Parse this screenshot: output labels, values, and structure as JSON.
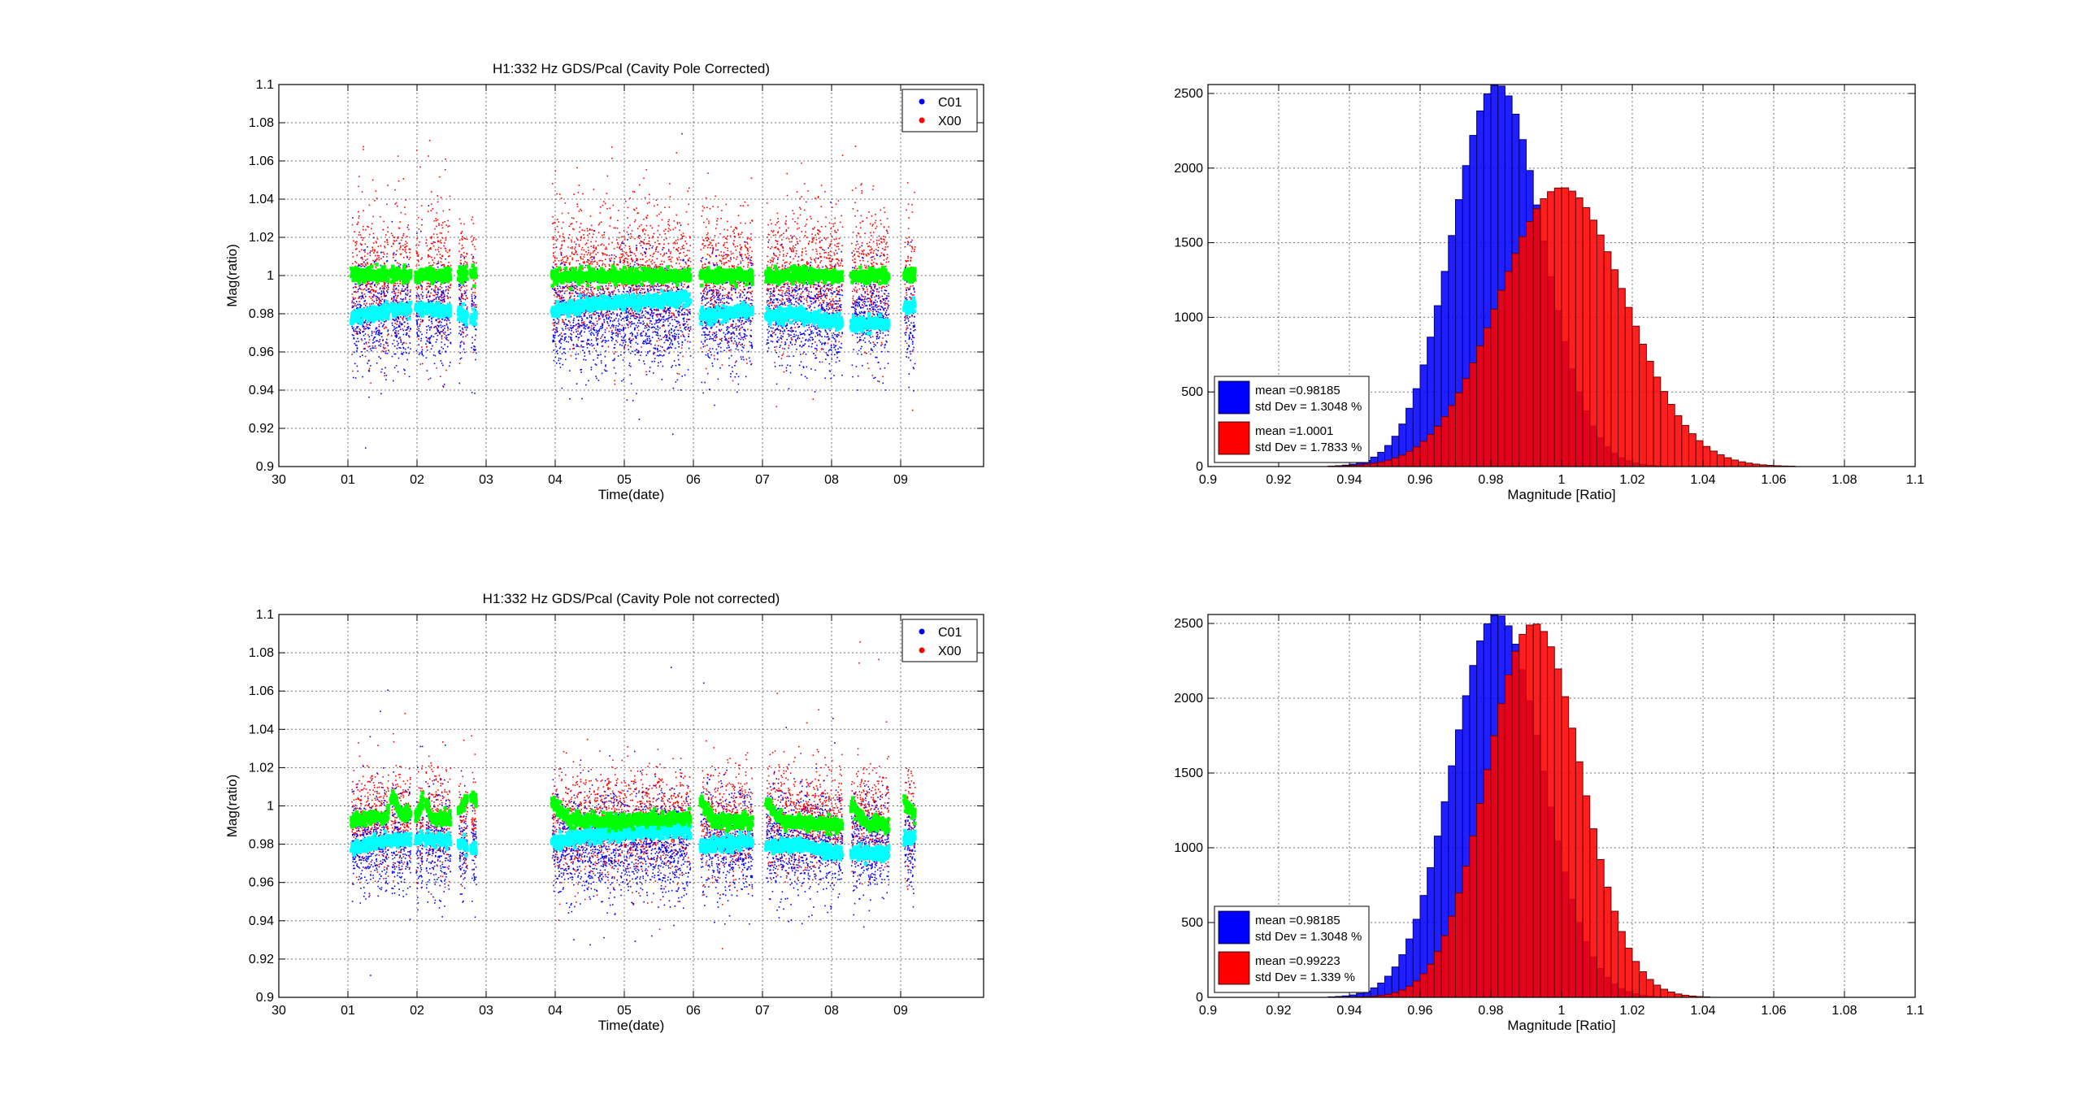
{
  "figure": {
    "background": "#ffffff"
  },
  "chart_data": [
    {
      "id": "scatter-top",
      "type": "scatter",
      "title": "H1:332 Hz GDS/Pcal (Cavity Pole Corrected)",
      "xlabel": "Time(date)",
      "ylabel": "Mag(ratio)",
      "xlim": [
        0,
        10.2
      ],
      "ylim": [
        0.9,
        1.1
      ],
      "x_ticks": [
        {
          "v": 0,
          "label": "30"
        },
        {
          "v": 1,
          "label": "01"
        },
        {
          "v": 2,
          "label": "02"
        },
        {
          "v": 3,
          "label": "03"
        },
        {
          "v": 4,
          "label": "04"
        },
        {
          "v": 5,
          "label": "05"
        },
        {
          "v": 6,
          "label": "06"
        },
        {
          "v": 7,
          "label": "07"
        },
        {
          "v": 8,
          "label": "08"
        },
        {
          "v": 9,
          "label": "09"
        }
      ],
      "y_ticks": [
        0.9,
        0.92,
        0.94,
        0.96,
        0.98,
        1,
        1.02,
        1.04,
        1.06,
        1.08,
        1.1
      ],
      "grid": true,
      "legend": {
        "position": "top-right",
        "entries": [
          {
            "name": "C01",
            "color": "#0000ff"
          },
          {
            "name": "X00",
            "color": "#ff0000"
          }
        ]
      },
      "segments": [
        [
          1.05,
          1.58
        ],
        [
          1.62,
          1.9
        ],
        [
          1.98,
          2.08
        ],
        [
          2.12,
          2.48
        ],
        [
          2.6,
          2.72
        ],
        [
          2.78,
          2.85
        ],
        [
          3.95,
          5.95
        ],
        [
          6.1,
          6.85
        ],
        [
          7.05,
          8.15
        ],
        [
          8.28,
          8.82
        ],
        [
          9.05,
          9.2
        ]
      ],
      "series": [
        {
          "name": "C01",
          "color": "#0000ff",
          "center": 0.98,
          "spread": 0.0135
        },
        {
          "name": "X00",
          "color": "#ff0000",
          "center": 1.0,
          "spread": 0.018
        },
        {
          "color": "#00ffff",
          "trend": [
            [
              1.05,
              0.978
            ],
            [
              1.6,
              0.982
            ],
            [
              2.0,
              0.983
            ],
            [
              2.5,
              0.982
            ],
            [
              2.8,
              0.978
            ],
            [
              3.95,
              0.981
            ],
            [
              4.5,
              0.985
            ],
            [
              5.0,
              0.986
            ],
            [
              5.9,
              0.988
            ],
            [
              6.1,
              0.979
            ],
            [
              6.85,
              0.982
            ],
            [
              7.1,
              0.979
            ],
            [
              7.5,
              0.98
            ],
            [
              8.0,
              0.976
            ],
            [
              8.3,
              0.975
            ],
            [
              8.8,
              0.975
            ],
            [
              9.05,
              0.983
            ],
            [
              9.2,
              0.984
            ]
          ]
        },
        {
          "color": "#00ff00",
          "trend": [
            [
              1.05,
              1.001
            ],
            [
              2.5,
              1.0
            ],
            [
              2.8,
              1.001
            ],
            [
              3.95,
              1.0
            ],
            [
              5.95,
              1.0
            ],
            [
              6.1,
              1.0
            ],
            [
              7.0,
              1.0
            ],
            [
              8.2,
              1.0
            ],
            [
              9.2,
              1.0
            ]
          ]
        }
      ]
    },
    {
      "id": "hist-top",
      "type": "histogram",
      "xlabel": "Magnitude [Ratio]",
      "xlim": [
        0.9,
        1.1
      ],
      "ylim": [
        0,
        2560
      ],
      "x_ticks": [
        0.9,
        0.92,
        0.94,
        0.96,
        0.98,
        1,
        1.02,
        1.04,
        1.06,
        1.08,
        1.1
      ],
      "y_ticks": [
        0,
        500,
        1000,
        1500,
        2000,
        2500
      ],
      "grid": true,
      "series": [
        {
          "color": "#0000ff",
          "mean": 0.98185,
          "std": 0.012812,
          "peak": 2560
        },
        {
          "color": "#ff0000",
          "mean": 1.0001,
          "std": 0.017835,
          "peak": 1870
        }
      ],
      "legend": {
        "position": "bottom-left",
        "entries": [
          {
            "color": "#0000ff",
            "line1": "mean =0.98185",
            "line2": "std Dev = 1.3048 %"
          },
          {
            "color": "#ff0000",
            "line1": "mean =1.0001",
            "line2": "std Dev = 1.7833 %"
          }
        ]
      }
    },
    {
      "id": "scatter-bottom",
      "type": "scatter",
      "title": "H1:332 Hz GDS/Pcal (Cavity Pole not corrected)",
      "xlabel": "Time(date)",
      "ylabel": "Mag(ratio)",
      "xlim": [
        0,
        10.2
      ],
      "ylim": [
        0.9,
        1.1
      ],
      "x_ticks": [
        {
          "v": 0,
          "label": "30"
        },
        {
          "v": 1,
          "label": "01"
        },
        {
          "v": 2,
          "label": "02"
        },
        {
          "v": 3,
          "label": "03"
        },
        {
          "v": 4,
          "label": "04"
        },
        {
          "v": 5,
          "label": "05"
        },
        {
          "v": 6,
          "label": "06"
        },
        {
          "v": 7,
          "label": "07"
        },
        {
          "v": 8,
          "label": "08"
        },
        {
          "v": 9,
          "label": "09"
        }
      ],
      "y_ticks": [
        0.9,
        0.92,
        0.94,
        0.96,
        0.98,
        1,
        1.02,
        1.04,
        1.06,
        1.08,
        1.1
      ],
      "grid": true,
      "legend": {
        "position": "top-right",
        "entries": [
          {
            "name": "C01",
            "color": "#0000ff"
          },
          {
            "name": "X00",
            "color": "#ff0000"
          }
        ]
      },
      "segments": [
        [
          1.05,
          1.58
        ],
        [
          1.62,
          1.9
        ],
        [
          1.98,
          2.08
        ],
        [
          2.12,
          2.48
        ],
        [
          2.6,
          2.72
        ],
        [
          2.78,
          2.85
        ],
        [
          3.95,
          5.95
        ],
        [
          6.1,
          6.85
        ],
        [
          7.05,
          8.15
        ],
        [
          8.28,
          8.82
        ],
        [
          9.05,
          9.2
        ]
      ],
      "series": [
        {
          "name": "C01",
          "color": "#0000ff",
          "center": 0.98,
          "spread": 0.0135
        },
        {
          "name": "X00",
          "color": "#ff0000",
          "center": 0.992,
          "spread": 0.0135
        },
        {
          "color": "#00ffff",
          "trend": [
            [
              1.05,
              0.978
            ],
            [
              1.6,
              0.982
            ],
            [
              2.0,
              0.983
            ],
            [
              2.5,
              0.982
            ],
            [
              2.8,
              0.978
            ],
            [
              3.95,
              0.981
            ],
            [
              4.5,
              0.985
            ],
            [
              5.0,
              0.986
            ],
            [
              5.9,
              0.988
            ],
            [
              6.1,
              0.979
            ],
            [
              6.85,
              0.982
            ],
            [
              7.1,
              0.979
            ],
            [
              7.5,
              0.98
            ],
            [
              8.0,
              0.976
            ],
            [
              8.3,
              0.975
            ],
            [
              8.8,
              0.975
            ],
            [
              9.05,
              0.983
            ],
            [
              9.2,
              0.984
            ]
          ]
        },
        {
          "color": "#00ff00",
          "trend": [
            [
              1.05,
              0.993
            ],
            [
              1.55,
              0.994
            ],
            [
              1.65,
              1.006
            ],
            [
              1.75,
              0.996
            ],
            [
              2.0,
              0.995
            ],
            [
              2.1,
              1.005
            ],
            [
              2.2,
              0.994
            ],
            [
              2.5,
              0.993
            ],
            [
              2.7,
              1.002
            ],
            [
              2.8,
              1.005
            ],
            [
              3.95,
              1.002
            ],
            [
              4.2,
              0.993
            ],
            [
              5.0,
              0.992
            ],
            [
              5.95,
              0.994
            ],
            [
              6.1,
              1.003
            ],
            [
              6.3,
              0.992
            ],
            [
              6.85,
              0.992
            ],
            [
              7.05,
              1.002
            ],
            [
              7.3,
              0.992
            ],
            [
              8.15,
              0.99
            ],
            [
              8.3,
              1.0
            ],
            [
              8.5,
              0.991
            ],
            [
              8.82,
              0.99
            ],
            [
              9.05,
              1.002
            ],
            [
              9.2,
              0.995
            ]
          ]
        }
      ]
    },
    {
      "id": "hist-bottom",
      "type": "histogram",
      "xlabel": "Magnitude [Ratio]",
      "xlim": [
        0.9,
        1.1
      ],
      "ylim": [
        0,
        2560
      ],
      "x_ticks": [
        0.9,
        0.92,
        0.94,
        0.96,
        0.98,
        1,
        1.02,
        1.04,
        1.06,
        1.08,
        1.1
      ],
      "y_ticks": [
        0,
        500,
        1000,
        1500,
        2000,
        2500
      ],
      "grid": true,
      "series": [
        {
          "color": "#0000ff",
          "mean": 0.98185,
          "std": 0.012812,
          "peak": 2560
        },
        {
          "color": "#ff0000",
          "mean": 0.99223,
          "std": 0.013286,
          "peak": 2500
        }
      ],
      "legend": {
        "position": "bottom-left",
        "entries": [
          {
            "color": "#0000ff",
            "line1": "mean =0.98185",
            "line2": "std Dev = 1.3048 %"
          },
          {
            "color": "#ff0000",
            "line1": "mean =0.99223",
            "line2": "std Dev = 1.339 %"
          }
        ]
      }
    }
  ]
}
